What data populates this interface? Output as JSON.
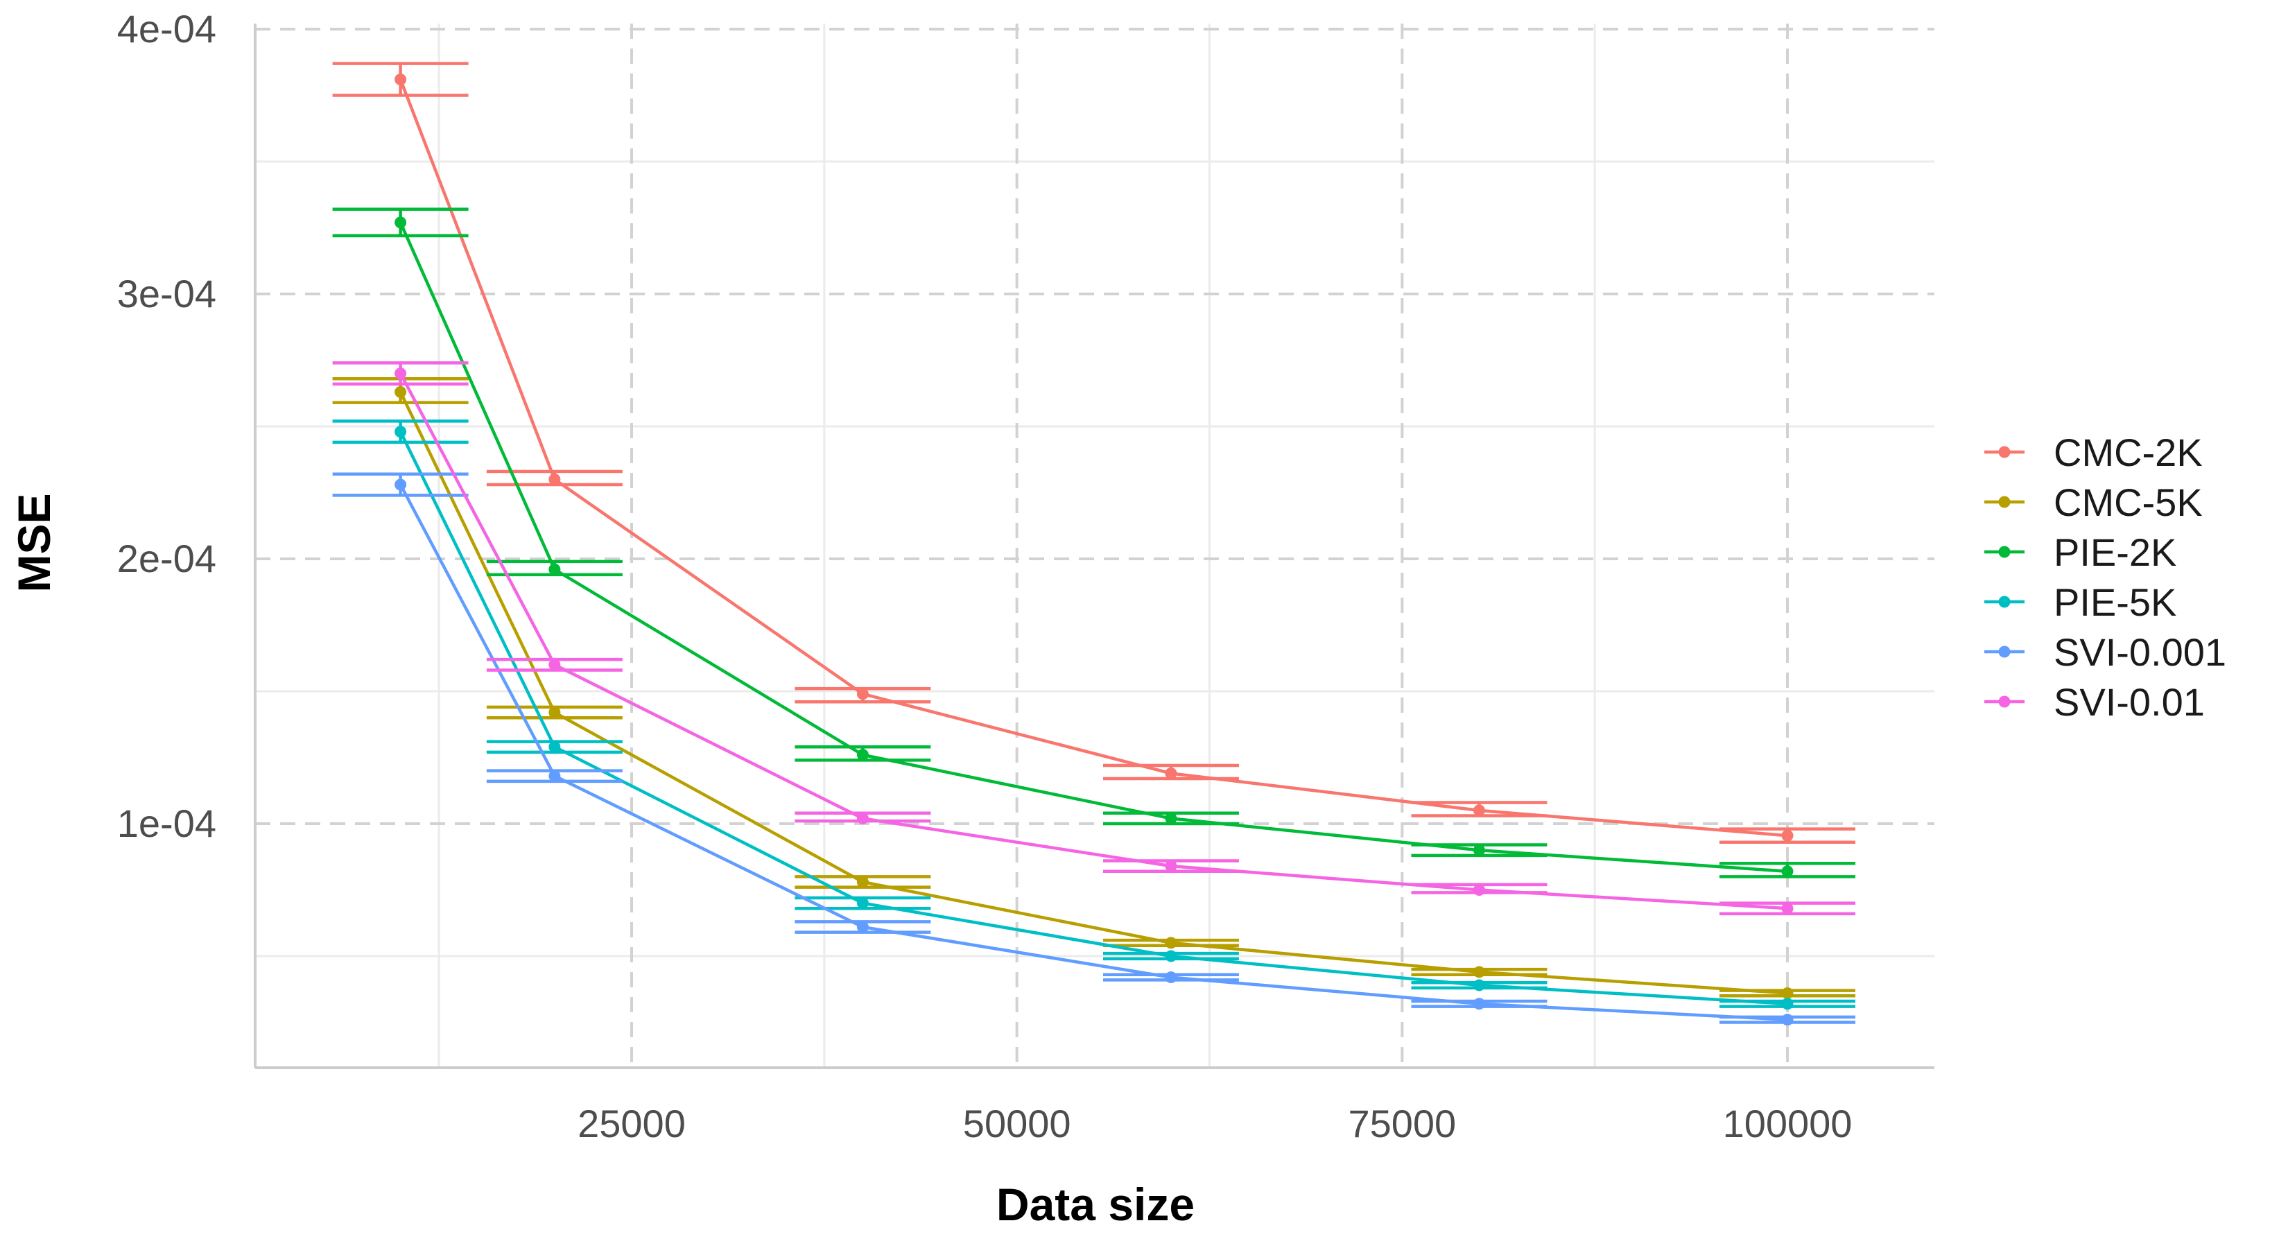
{
  "chart_data": {
    "type": "line",
    "title": "",
    "xlabel": "Data size",
    "ylabel": "MSE",
    "x": [
      10000,
      20000,
      40000,
      60000,
      80000,
      100000
    ],
    "xlim": [
      0,
      100000
    ],
    "ylim": [
      0.0,
      0.0004
    ],
    "x_ticks": [
      25000,
      50000,
      75000,
      100000
    ],
    "x_tick_labels": [
      "25000",
      "50000",
      "75000",
      "100000"
    ],
    "y_ticks": [
      0.0001,
      0.0002,
      0.0003,
      0.0004
    ],
    "y_tick_labels": [
      "1e-04",
      "2e-04",
      "3e-04",
      "4e-04"
    ],
    "grid": true,
    "legend_position": "right",
    "series": [
      {
        "name": "CMC-2K",
        "color": "#F8766D",
        "values": [
          0.000381,
          0.00023,
          0.000149,
          0.000119,
          0.000105,
          9.55e-05
        ],
        "error_low": [
          0.000375,
          0.000228,
          0.000146,
          0.000117,
          0.000103,
          9.3e-05
        ],
        "error_high": [
          0.000387,
          0.000233,
          0.000151,
          0.000122,
          0.000108,
          9.8e-05
        ]
      },
      {
        "name": "CMC-5K",
        "color": "#B79F00",
        "values": [
          0.000263,
          0.000142,
          7.8e-05,
          5.5e-05,
          4.4e-05,
          3.6e-05
        ],
        "error_low": [
          0.000259,
          0.00014,
          7.6e-05,
          5.4e-05,
          4.3e-05,
          3.5e-05
        ],
        "error_high": [
          0.000268,
          0.000144,
          8e-05,
          5.6e-05,
          4.5e-05,
          3.7e-05
        ]
      },
      {
        "name": "PIE-2K",
        "color": "#00BA38",
        "values": [
          0.000327,
          0.000196,
          0.000126,
          0.000102,
          9e-05,
          8.2e-05
        ],
        "error_low": [
          0.000322,
          0.000194,
          0.000124,
          0.0001,
          8.8e-05,
          8e-05
        ],
        "error_high": [
          0.000332,
          0.000199,
          0.000129,
          0.000104,
          9.2e-05,
          8.5e-05
        ]
      },
      {
        "name": "PIE-5K",
        "color": "#00BFC4",
        "values": [
          0.000248,
          0.000129,
          7e-05,
          5e-05,
          3.9e-05,
          3.2e-05
        ],
        "error_low": [
          0.000244,
          0.000127,
          6.8e-05,
          4.9e-05,
          3.8e-05,
          3.1e-05
        ],
        "error_high": [
          0.000252,
          0.000131,
          7.2e-05,
          5.1e-05,
          4e-05,
          3.3e-05
        ]
      },
      {
        "name": "SVI-0.001",
        "color": "#619CFF",
        "values": [
          0.000228,
          0.000118,
          6.1e-05,
          4.2e-05,
          3.2e-05,
          2.6e-05
        ],
        "error_low": [
          0.000224,
          0.000116,
          5.9e-05,
          4.1e-05,
          3.1e-05,
          2.5e-05
        ],
        "error_high": [
          0.000232,
          0.00012,
          6.3e-05,
          4.3e-05,
          3.3e-05,
          2.7e-05
        ]
      },
      {
        "name": "SVI-0.01",
        "color": "#F564E3",
        "values": [
          0.00027,
          0.00016,
          0.000102,
          8.4e-05,
          7.5e-05,
          6.8e-05
        ],
        "error_low": [
          0.000266,
          0.000158,
          0.000101,
          8.2e-05,
          7.4e-05,
          6.6e-05
        ],
        "error_high": [
          0.000274,
          0.000162,
          0.000104,
          8.6e-05,
          7.7e-05,
          7e-05
        ]
      }
    ]
  }
}
